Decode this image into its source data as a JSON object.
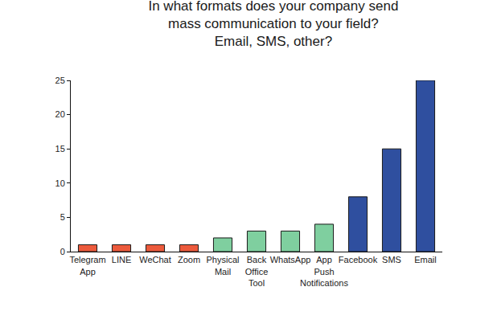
{
  "chart_data": {
    "type": "bar",
    "title": "In what formats does your company send\nmass communication to your field?\nEmail, SMS, other?",
    "categories": [
      "Telegram App",
      "LINE",
      "WeChat",
      "Zoom",
      "Physical Mail",
      "Back Office Tool",
      "WhatsApp",
      "App Push Notifications",
      "Facebook",
      "SMS",
      "Email"
    ],
    "values": [
      1,
      1,
      1,
      1,
      2,
      3,
      3,
      4,
      8,
      15,
      25
    ],
    "colors": [
      "#ec5a3c",
      "#ec5a3c",
      "#ec5a3c",
      "#ec5a3c",
      "#7fcf9f",
      "#7fcf9f",
      "#7fcf9f",
      "#7fcf9f",
      "#2f4f9f",
      "#2f4f9f",
      "#2f4f9f"
    ],
    "ylim": [
      0,
      25
    ],
    "yticks": [
      0,
      5,
      10,
      15,
      20,
      25
    ],
    "grid": false
  }
}
